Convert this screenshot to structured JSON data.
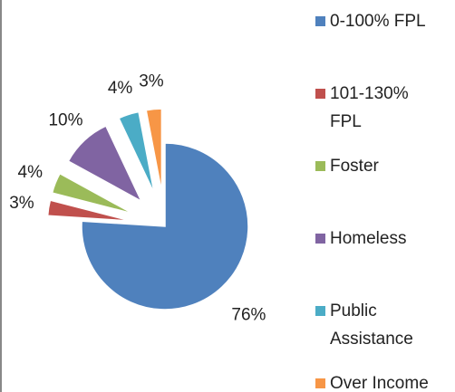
{
  "chart_data": {
    "type": "pie",
    "categories": [
      "0-100% FPL",
      "101-130% FPL",
      "Foster",
      "Homeless",
      "Public Assistance",
      "Over Income"
    ],
    "values": [
      76,
      3,
      4,
      10,
      4,
      3
    ],
    "value_labels": [
      "76%",
      "3%",
      "4%",
      "10%",
      "4%",
      "3%"
    ],
    "colors": [
      "#4f81bd",
      "#c0504d",
      "#9bbb59",
      "#8064a2",
      "#4bacc6",
      "#f79646"
    ],
    "legend": "right"
  }
}
